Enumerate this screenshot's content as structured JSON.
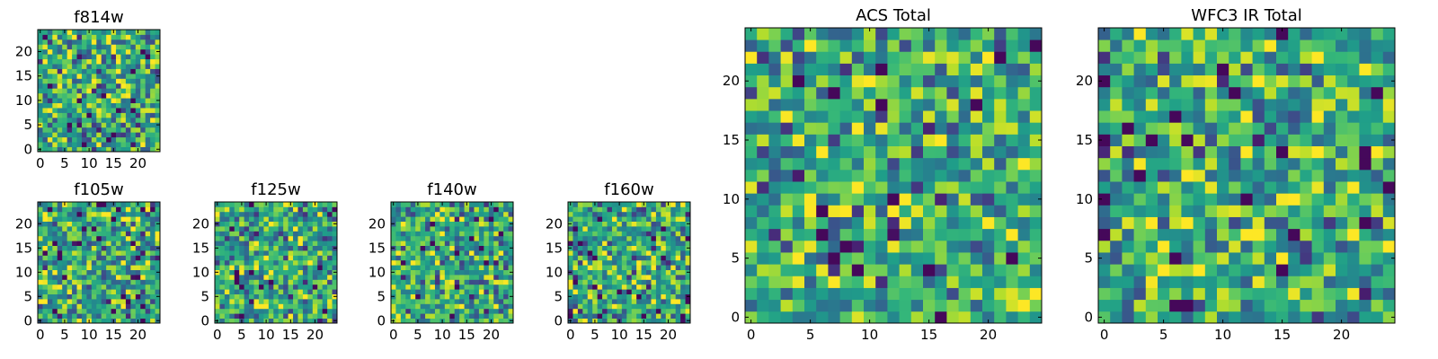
{
  "chart_data": [
    {
      "type": "heatmap",
      "title": "f814w",
      "xticks": [
        "0",
        "5",
        "10",
        "15",
        "20"
      ],
      "yticks": [
        "0",
        "5",
        "10",
        "15",
        "20"
      ],
      "xlim": [
        -0.5,
        24.5
      ],
      "ylim": [
        -0.5,
        24.5
      ],
      "colormap": "viridis",
      "grid": false,
      "seed": 11
    },
    {
      "type": "heatmap",
      "title": "f105w",
      "xticks": [
        "0",
        "5",
        "10",
        "15",
        "20"
      ],
      "yticks": [
        "0",
        "5",
        "10",
        "15",
        "20"
      ],
      "xlim": [
        -0.5,
        24.5
      ],
      "ylim": [
        -0.5,
        24.5
      ],
      "colormap": "viridis",
      "grid": false,
      "seed": 23
    },
    {
      "type": "heatmap",
      "title": "f125w",
      "xticks": [
        "0",
        "5",
        "10",
        "15",
        "20"
      ],
      "yticks": [
        "0",
        "5",
        "10",
        "15",
        "20"
      ],
      "xlim": [
        -0.5,
        24.5
      ],
      "ylim": [
        -0.5,
        24.5
      ],
      "colormap": "viridis",
      "grid": false,
      "seed": 37
    },
    {
      "type": "heatmap",
      "title": "f140w",
      "xticks": [
        "0",
        "5",
        "10",
        "15",
        "20"
      ],
      "yticks": [
        "0",
        "5",
        "10",
        "15",
        "20"
      ],
      "xlim": [
        -0.5,
        24.5
      ],
      "ylim": [
        -0.5,
        24.5
      ],
      "colormap": "viridis",
      "grid": false,
      "seed": 41
    },
    {
      "type": "heatmap",
      "title": "f160w",
      "xticks": [
        "0",
        "5",
        "10",
        "15",
        "20"
      ],
      "yticks": [
        "0",
        "5",
        "10",
        "15",
        "20"
      ],
      "xlim": [
        -0.5,
        24.5
      ],
      "ylim": [
        -0.5,
        24.5
      ],
      "colormap": "viridis",
      "grid": false,
      "seed": 53
    },
    {
      "type": "heatmap",
      "title": "ACS Total",
      "xticks": [
        "0",
        "5",
        "10",
        "15",
        "20"
      ],
      "yticks": [
        "0",
        "5",
        "10",
        "15",
        "20"
      ],
      "xlim": [
        -0.5,
        24.5
      ],
      "ylim": [
        -0.5,
        24.5
      ],
      "colormap": "viridis",
      "grid": false,
      "seed": 67
    },
    {
      "type": "heatmap",
      "title": "WFC3 IR Total",
      "xticks": [
        "0",
        "5",
        "10",
        "15",
        "20"
      ],
      "yticks": [
        "0",
        "5",
        "10",
        "15",
        "20"
      ],
      "xlim": [
        -0.5,
        24.5
      ],
      "ylim": [
        -0.5,
        24.5
      ],
      "colormap": "viridis",
      "grid": false,
      "seed": 79
    }
  ]
}
